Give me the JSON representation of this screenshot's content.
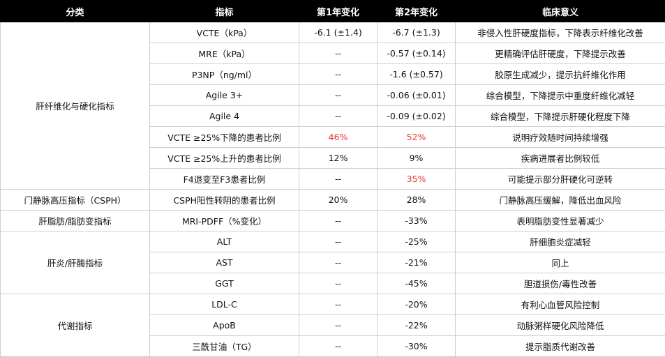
{
  "headers": [
    "分类",
    "指标",
    "第1年变化",
    "第2年变化",
    "临床意义"
  ],
  "colors": {
    "header_bg": "#000000",
    "header_text": "#ffffff",
    "highlight": "#e53935"
  },
  "groups": [
    {
      "category": "肝纤维化与硬化指标",
      "rows": [
        {
          "indicator": "VCTE（kPa）",
          "y1": "-6.1 (±1.4)",
          "y2": "-6.7 (±1.3)",
          "meaning": "非侵入性肝硬度指标，下降表示纤维化改善"
        },
        {
          "indicator": "MRE（kPa）",
          "y1": "--",
          "y2": "-0.57 (±0.14)",
          "meaning": "更精确评估肝硬度，下降提示改善"
        },
        {
          "indicator": "P3NP（ng/ml）",
          "y1": "--",
          "y2": "-1.6 (±0.57)",
          "meaning": "胶原生成减少，提示抗纤维化作用"
        },
        {
          "indicator": "Agile 3+",
          "y1": "--",
          "y2": "-0.06 (±0.01)",
          "meaning": "综合模型，下降提示中重度纤维化减轻"
        },
        {
          "indicator": "Agile 4",
          "y1": "--",
          "y2": "-0.09 (±0.02)",
          "meaning": "综合模型，下降提示肝硬化程度下降"
        },
        {
          "indicator": "VCTE ≥25%下降的患者比例",
          "y1": "46%",
          "y2": "52%",
          "meaning": "说明疗效随时间持续增强",
          "y1_highlight": true,
          "y2_highlight": true
        },
        {
          "indicator": "VCTE ≥25%上升的患者比例",
          "y1": "12%",
          "y2": "9%",
          "meaning": "疾病进展者比例较低"
        },
        {
          "indicator": "F4退变至F3患者比例",
          "y1": "--",
          "y2": "35%",
          "meaning": "可能提示部分肝硬化可逆转",
          "y2_highlight": true
        }
      ]
    },
    {
      "category": "门静脉高压指标（CSPH）",
      "rows": [
        {
          "indicator": "CSPH阳性转阴的患者比例",
          "y1": "20%",
          "y2": "28%",
          "meaning": "门静脉高压缓解，降低出血风险"
        }
      ]
    },
    {
      "category": "肝脂肪/脂肪变指标",
      "rows": [
        {
          "indicator": "MRI-PDFF（%变化）",
          "y1": "--",
          "y2": "-33%",
          "meaning": "表明脂肪变性显著减少"
        }
      ]
    },
    {
      "category": "肝炎/肝酶指标",
      "rows": [
        {
          "indicator": "ALT",
          "y1": "--",
          "y2": "-25%",
          "meaning": "肝细胞炎症减轻"
        },
        {
          "indicator": "AST",
          "y1": "--",
          "y2": "-21%",
          "meaning": "同上"
        },
        {
          "indicator": "GGT",
          "y1": "--",
          "y2": "-45%",
          "meaning": "胆道损伤/毒性改善"
        }
      ]
    },
    {
      "category": "代谢指标",
      "rows": [
        {
          "indicator": "LDL-C",
          "y1": "--",
          "y2": "-20%",
          "meaning": "有利心血管风险控制"
        },
        {
          "indicator": "ApoB",
          "y1": "--",
          "y2": "-22%",
          "meaning": "动脉粥样硬化风险降低"
        },
        {
          "indicator": "三酰甘油（TG）",
          "y1": "--",
          "y2": "-30%",
          "meaning": "提示脂质代谢改善"
        }
      ]
    }
  ]
}
